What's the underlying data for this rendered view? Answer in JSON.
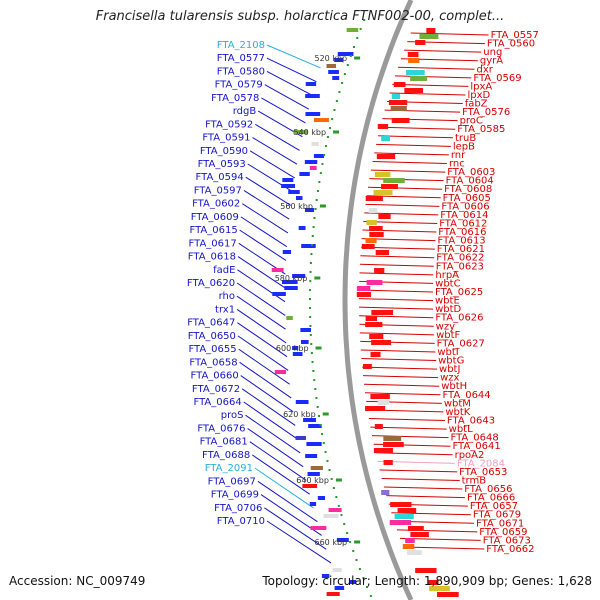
{
  "title": "Francisella tularensis subsp. holarctica FTNF002-00, complet...",
  "accession": "Accession: NC_009749",
  "summary": "Topology: circular; Length: 1,890,909 bp; Genes: 1,628",
  "colors": {
    "forward_label": "#1515c8",
    "reverse_label": "#d40000",
    "rna_label_blue": "#2ab0d8",
    "rna_label_pink": "#f0a0c0",
    "backbone": "#9a9a9a",
    "tick": "#2a9a2a"
  },
  "ruler_ticks": [
    "520 kbp",
    "540 kbp",
    "560 kbp",
    "580 kbp",
    "600 kbp",
    "620 kbp",
    "640 kbp",
    "660 kbp"
  ],
  "left_labels": [
    {
      "text": "FTA_2108",
      "rna": true
    },
    {
      "text": "FTA_0577"
    },
    {
      "text": "FTA_0580"
    },
    {
      "text": "FTA_0579"
    },
    {
      "text": "FTA_0578"
    },
    {
      "text": "rdgB"
    },
    {
      "text": "FTA_0592"
    },
    {
      "text": "FTA_0591"
    },
    {
      "text": "FTA_0590"
    },
    {
      "text": "FTA_0593"
    },
    {
      "text": "FTA_0594"
    },
    {
      "text": "FTA_0597"
    },
    {
      "text": "FTA_0602"
    },
    {
      "text": "FTA_0609"
    },
    {
      "text": "FTA_0615"
    },
    {
      "text": "FTA_0617"
    },
    {
      "text": "FTA_0618"
    },
    {
      "text": "fadE"
    },
    {
      "text": "FTA_0620"
    },
    {
      "text": "rho"
    },
    {
      "text": "trx1"
    },
    {
      "text": "FTA_0647"
    },
    {
      "text": "FTA_0650"
    },
    {
      "text": "FTA_0655"
    },
    {
      "text": "FTA_0658"
    },
    {
      "text": "FTA_0660"
    },
    {
      "text": "FTA_0672"
    },
    {
      "text": "FTA_0664"
    },
    {
      "text": "proS"
    },
    {
      "text": "FTA_0676"
    },
    {
      "text": "FTA_0681"
    },
    {
      "text": "FTA_0688"
    },
    {
      "text": "FTA_2091",
      "rna": true
    },
    {
      "text": "FTA_0697"
    },
    {
      "text": "FTA_0699"
    },
    {
      "text": "FTA_0706"
    },
    {
      "text": "FTA_0710"
    }
  ],
  "right_labels": [
    {
      "text": "FTA_0557"
    },
    {
      "text": "FTA_0560"
    },
    {
      "text": "ung"
    },
    {
      "text": "gyrA"
    },
    {
      "text": "dxr"
    },
    {
      "text": "FTA_0569"
    },
    {
      "text": "lpxA"
    },
    {
      "text": "lpxD"
    },
    {
      "text": "fabZ"
    },
    {
      "text": "FTA_0576"
    },
    {
      "text": "proC"
    },
    {
      "text": "FTA_0585"
    },
    {
      "text": "truB"
    },
    {
      "text": "lepB"
    },
    {
      "text": "rnr"
    },
    {
      "text": "rnc"
    },
    {
      "text": "FTA_0603"
    },
    {
      "text": "FTA_0604"
    },
    {
      "text": "FTA_0608"
    },
    {
      "text": "FTA_0605"
    },
    {
      "text": "FTA_0606"
    },
    {
      "text": "FTA_0614"
    },
    {
      "text": "FTA_0612"
    },
    {
      "text": "FTA_0616"
    },
    {
      "text": "FTA_0613"
    },
    {
      "text": "FTA_0621"
    },
    {
      "text": "FTA_0622"
    },
    {
      "text": "FTA_0623"
    },
    {
      "text": "hrpA"
    },
    {
      "text": "wbtC"
    },
    {
      "text": "FTA_0625"
    },
    {
      "text": "wbtE"
    },
    {
      "text": "wbtD"
    },
    {
      "text": "FTA_0626"
    },
    {
      "text": "wzy"
    },
    {
      "text": "wbtF"
    },
    {
      "text": "FTA_0627"
    },
    {
      "text": "wbtI"
    },
    {
      "text": "wbtG"
    },
    {
      "text": "wbtJ"
    },
    {
      "text": "wzx"
    },
    {
      "text": "wbtH"
    },
    {
      "text": "FTA_0644"
    },
    {
      "text": "wbtM"
    },
    {
      "text": "wbtK"
    },
    {
      "text": "FTA_0643"
    },
    {
      "text": "wbtL"
    },
    {
      "text": "FTA_0648"
    },
    {
      "text": "FTA_0641"
    },
    {
      "text": "rpoA2"
    },
    {
      "text": "FTA_2084",
      "rna": true
    },
    {
      "text": "FTA_0653"
    },
    {
      "text": "trmB"
    },
    {
      "text": "FTA_0656"
    },
    {
      "text": "FTA_0666"
    },
    {
      "text": "FTA_0657"
    },
    {
      "text": "FTA_0679"
    },
    {
      "text": "FTA_0671"
    },
    {
      "text": "FTA_0659"
    },
    {
      "text": "FTA_0673"
    },
    {
      "text": "FTA_0662"
    }
  ]
}
